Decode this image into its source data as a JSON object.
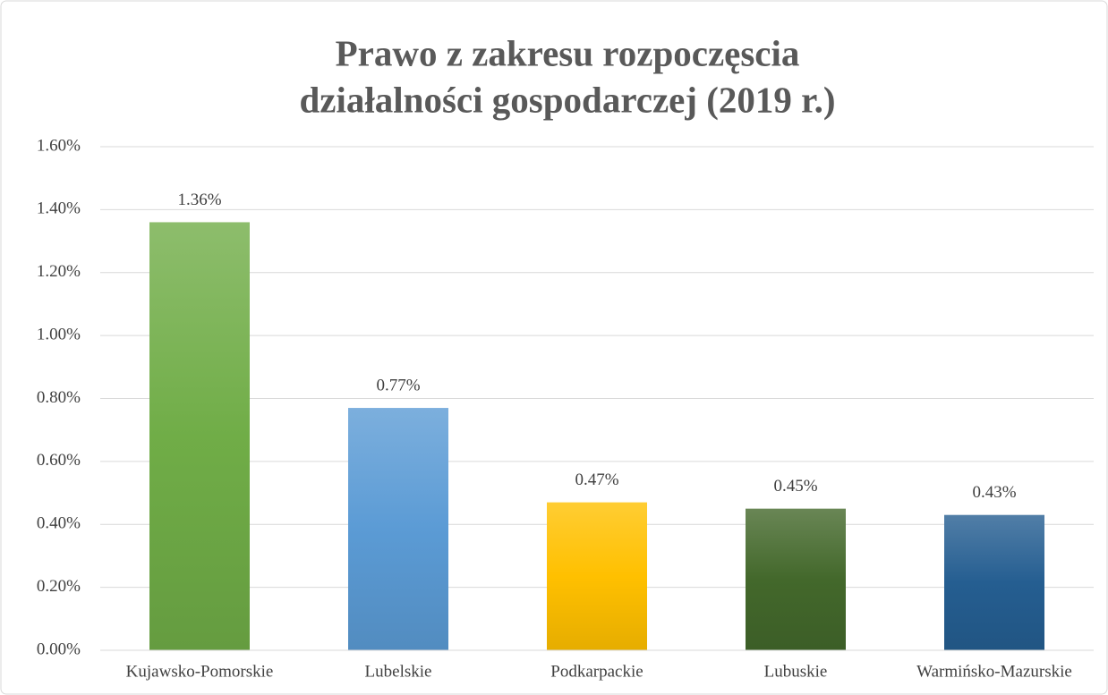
{
  "chart_data": {
    "type": "bar",
    "title": [
      "Prawo z zakresu rozpoczęscia",
      "działalności gospodarczej (2019 r.)"
    ],
    "categories": [
      "Kujawsko-Pomorskie",
      "Lubelskie",
      "Podkarpackie",
      "Lubuskie",
      "Warmińsko-Mazurskie"
    ],
    "values": [
      1.36,
      0.77,
      0.47,
      0.45,
      0.43
    ],
    "value_labels": [
      "1.36%",
      "0.77%",
      "0.47%",
      "0.45%",
      "0.43%"
    ],
    "colors": [
      "#70ad47",
      "#5b9bd5",
      "#ffc000",
      "#43682b",
      "#255e91"
    ],
    "ylim": [
      0,
      1.6
    ],
    "yticks": [
      {
        "value": 0,
        "label": "0.00%"
      },
      {
        "value": 0.2,
        "label": "0.20%"
      },
      {
        "value": 0.4,
        "label": "0.40%"
      },
      {
        "value": 0.6,
        "label": "0.60%"
      },
      {
        "value": 0.8,
        "label": "0.80%"
      },
      {
        "value": 1.0,
        "label": "1.00%"
      },
      {
        "value": 1.2,
        "label": "1.20%"
      },
      {
        "value": 1.4,
        "label": "1.40%"
      },
      {
        "value": 1.6,
        "label": "1.60%"
      }
    ],
    "grid": true
  }
}
